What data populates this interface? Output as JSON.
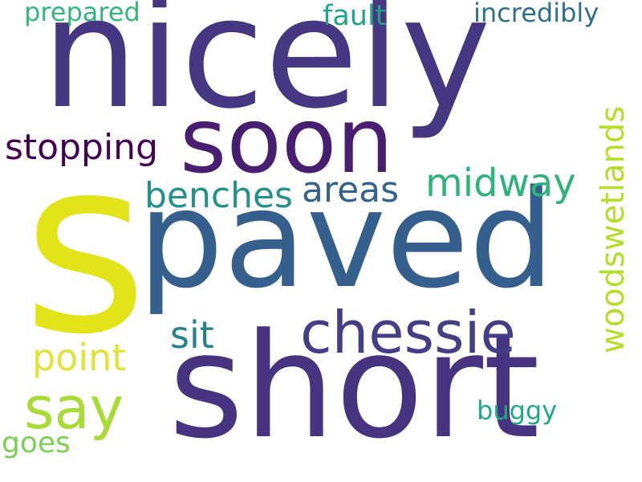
{
  "words": [
    {
      "text": "nicely",
      "color": "#453781"
    },
    {
      "text": "s",
      "color": "#e2e418"
    },
    {
      "text": "paved",
      "color": "#355f8d"
    },
    {
      "text": "short",
      "color": "#463480"
    },
    {
      "text": "soon",
      "color": "#481f70"
    },
    {
      "text": "chessie",
      "color": "#433e85"
    },
    {
      "text": "say",
      "color": "#a8db34"
    },
    {
      "text": "midway",
      "color": "#2eb37c"
    },
    {
      "text": "stopping",
      "color": "#440154"
    },
    {
      "text": "benches",
      "color": "#21918c"
    },
    {
      "text": "areas",
      "color": "#33638d"
    },
    {
      "text": "point",
      "color": "#e0e33a"
    },
    {
      "text": "sit",
      "color": "#26828e"
    },
    {
      "text": "woodswetlands",
      "color": "#b5de2b"
    },
    {
      "text": "incredibly",
      "color": "#2d708e"
    },
    {
      "text": "prepared",
      "color": "#35b779"
    },
    {
      "text": "fault",
      "color": "#20a486"
    },
    {
      "text": "goes",
      "color": "#7ad151"
    },
    {
      "text": "buggy",
      "color": "#22a884"
    }
  ]
}
